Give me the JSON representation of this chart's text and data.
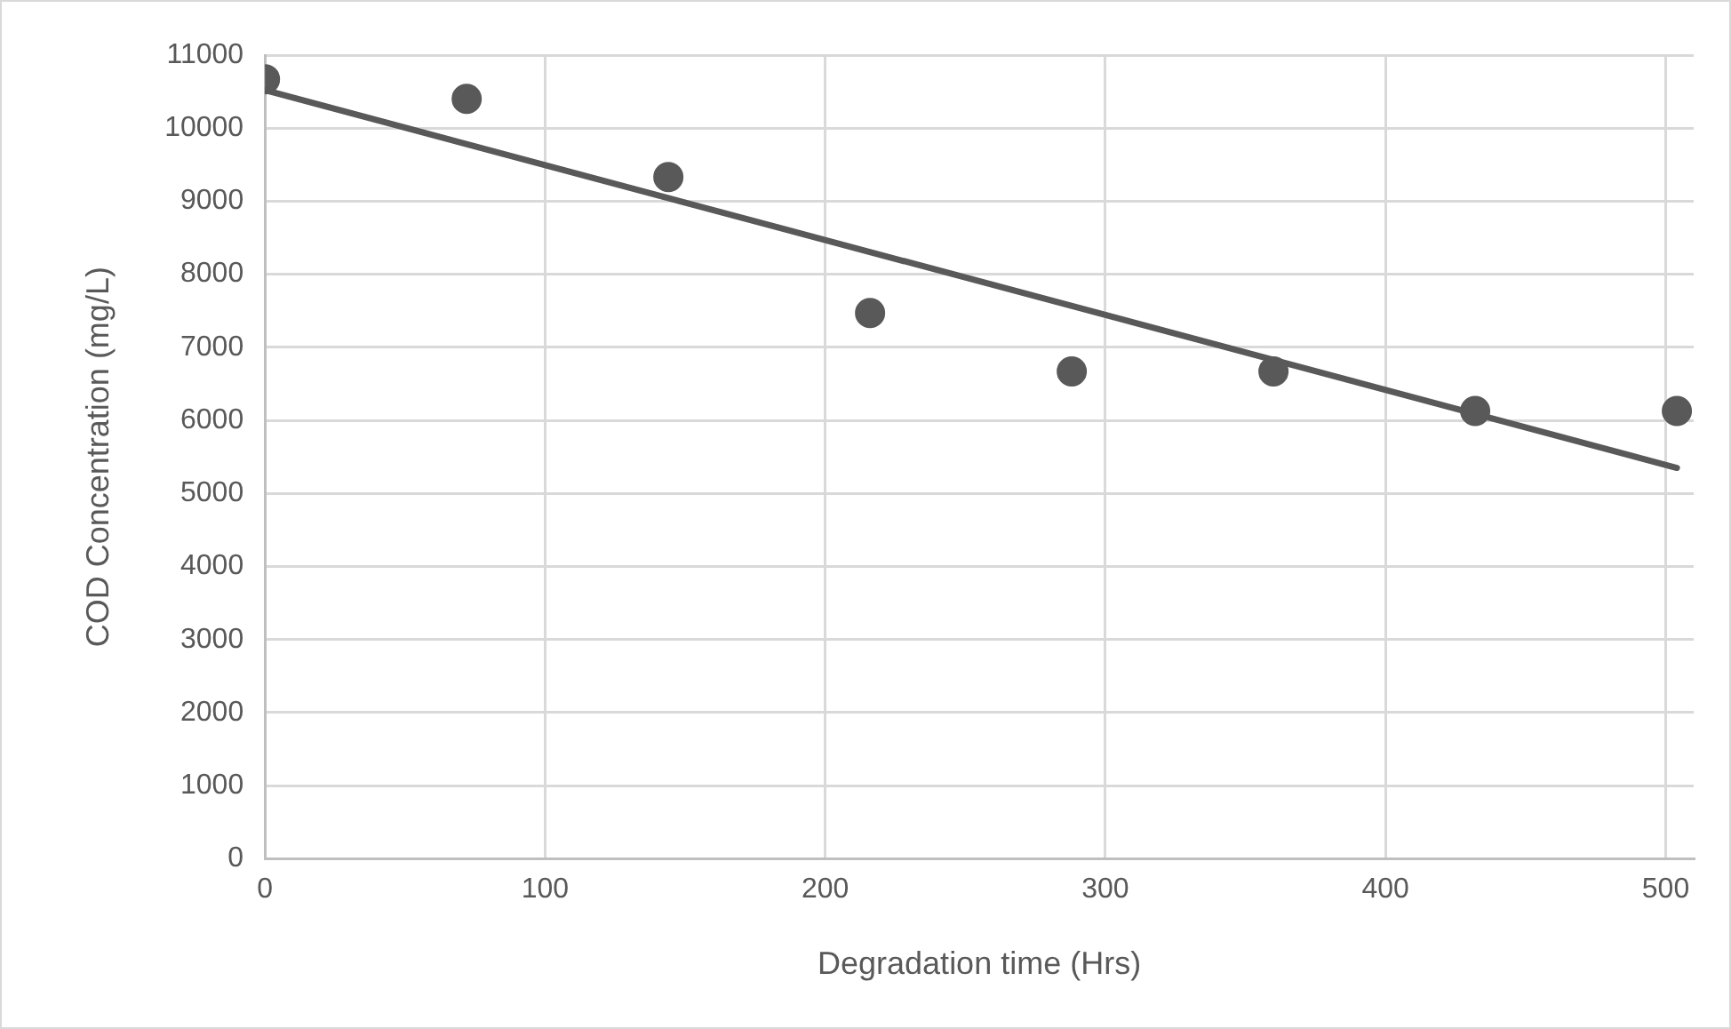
{
  "chart_data": {
    "type": "scatter",
    "xlabel": "Degradation time (Hrs)",
    "ylabel": "COD Concentration (mg/L)",
    "x": [
      0,
      72,
      144,
      216,
      288,
      360,
      432,
      504
    ],
    "series": [
      {
        "color": "#595959",
        "marker": "circle",
        "values": [
          10670,
          10400,
          9330,
          7470,
          6670,
          6670,
          6130,
          6130
        ]
      },
      {
        "type": "line",
        "color": "#595959",
        "marker": "none",
        "line_style": "solid",
        "x": [
          0,
          504
        ],
        "values": [
          10520,
          5350
        ]
      }
    ],
    "xlim": [
      0,
      510
    ],
    "xticks": [
      0,
      100,
      200,
      300,
      400,
      500
    ],
    "ylim": [
      0,
      11000
    ],
    "yticks": [
      0,
      1000,
      2000,
      3000,
      4000,
      5000,
      6000,
      7000,
      8000,
      9000,
      10000,
      11000
    ],
    "grid": true,
    "legend": false
  }
}
